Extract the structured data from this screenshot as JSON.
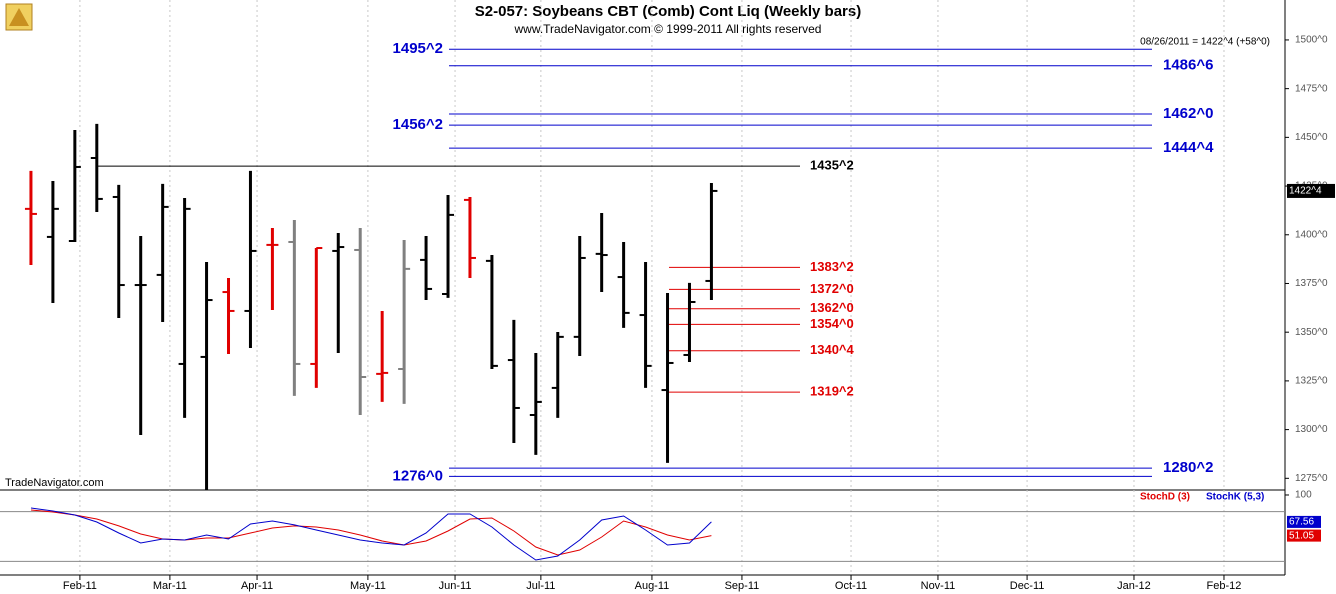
{
  "chart_data": {
    "type": "ohlc",
    "title": "S2-057:  Soybeans CBT (Comb) Cont Liq  (Weekly bars)",
    "subtitle": "www.TradeNavigator.com © 1999-2011 All rights reserved",
    "watermark": "TradeNavigator.com",
    "quote_header": "08/26/2011 = 1422^4 (+58^0)",
    "last_price": {
      "value": 1422.5,
      "label": "1422^4"
    },
    "categories": [
      null,
      null,
      null,
      null,
      null,
      null,
      null,
      null,
      null,
      null,
      null,
      null,
      null,
      null,
      null,
      null,
      null,
      null,
      null,
      null,
      null,
      null,
      null,
      null,
      null,
      null,
      null,
      null,
      null,
      null,
      null,
      null
    ],
    "open": [
      1413.3,
      1398.9,
      1396.8,
      1439.4,
      1419.4,
      1374.2,
      1379.4,
      1333.7,
      1337.3,
      1370.6,
      1360.9,
      1394.8,
      1396.3,
      1333.7,
      1391.7,
      1392.2,
      1328.6,
      1331.1,
      1387.1,
      1369.6,
      1417.9,
      1386.6,
      1335.7,
      1307.5,
      1321.4,
      1347.6,
      1390.2,
      1378.3,
      1358.8,
      1320.3,
      1338.3,
      1376.3
    ],
    "high": [
      1432.8,
      1427.6,
      1453.8,
      1456.9,
      1425.6,
      1399.4,
      1426.1,
      1418.9,
      1386.0,
      1377.8,
      1432.8,
      1403.5,
      1407.6,
      1393.2,
      1400.9,
      1403.5,
      1360.9,
      1397.3,
      1399.4,
      1420.4,
      1419.4,
      1389.6,
      1356.3,
      1339.3,
      1350.1,
      1399.4,
      1411.2,
      1396.3,
      1386.0,
      1370.1,
      1375.3,
      1426.6
    ],
    "low": [
      1384.5,
      1365.0,
      1396.3,
      1411.7,
      1357.3,
      1297.2,
      1355.2,
      1306.0,
      1269.0,
      1338.8,
      1341.9,
      1361.4,
      1317.3,
      1321.4,
      1339.3,
      1307.5,
      1314.2,
      1313.2,
      1366.5,
      1367.6,
      1377.8,
      1331.1,
      1293.1,
      1287.0,
      1306.0,
      1337.8,
      1370.6,
      1352.2,
      1321.4,
      1282.9,
      1334.7,
      1366.5
    ],
    "close": [
      1410.7,
      1413.3,
      1434.8,
      1418.4,
      1374.2,
      1374.2,
      1414.3,
      1413.3,
      1366.5,
      1360.9,
      1391.7,
      1394.8,
      1333.7,
      1393.2,
      1393.7,
      1327.0,
      1329.1,
      1382.5,
      1372.2,
      1410.2,
      1388.1,
      1332.7,
      1311.1,
      1314.2,
      1347.6,
      1388.1,
      1389.6,
      1359.9,
      1332.7,
      1334.2,
      1365.5,
      1422.5
    ],
    "bar_colors": [
      "#e00000",
      "#000000",
      "#000000",
      "#000000",
      "#000000",
      "#000000",
      "#000000",
      "#000000",
      "#000000",
      "#e00000",
      "#000000",
      "#e00000",
      "#808080",
      "#e00000",
      "#000000",
      "#808080",
      "#e00000",
      "#808080",
      "#000000",
      "#000000",
      "#e00000",
      "#000000",
      "#000000",
      "#000000",
      "#000000",
      "#000000",
      "#000000",
      "#000000",
      "#000000",
      "#000000",
      "#000000",
      "#000000"
    ],
    "xlim": [
      -1.41,
      57.13
    ],
    "xticks": [
      {
        "value": 2.23,
        "label": "Feb-11"
      },
      {
        "value": 6.33,
        "label": "Mar-11"
      },
      {
        "value": 10.3,
        "label": "Apr-11"
      },
      {
        "value": 15.35,
        "label": "May-11"
      },
      {
        "value": 19.32,
        "label": "Jun-11"
      },
      {
        "value": 23.23,
        "label": "Jul-11"
      },
      {
        "value": 28.29,
        "label": "Aug-11"
      },
      {
        "value": 32.39,
        "label": "Sep-11"
      },
      {
        "value": 37.36,
        "label": "Oct-11"
      },
      {
        "value": 41.32,
        "label": "Nov-11"
      },
      {
        "value": 45.38,
        "label": "Dec-11"
      },
      {
        "value": 50.25,
        "label": "Jan-12"
      },
      {
        "value": 54.35,
        "label": "Feb-12"
      }
    ],
    "ylim": [
      1269.0,
      1520.5
    ],
    "yticks": [
      {
        "value": 1275,
        "label": "1275^0"
      },
      {
        "value": 1300,
        "label": "1300^0"
      },
      {
        "value": 1325,
        "label": "1325^0"
      },
      {
        "value": 1350,
        "label": "1350^0"
      },
      {
        "value": 1375,
        "label": "1375^0"
      },
      {
        "value": 1400,
        "label": "1400^0"
      },
      {
        "value": 1425,
        "label": "1425^0"
      },
      {
        "value": 1450,
        "label": "1450^0"
      },
      {
        "value": 1475,
        "label": "1475^0"
      },
      {
        "value": 1500,
        "label": "1500^0"
      }
    ],
    "levels": [
      {
        "value": 1495.25,
        "label": "1495^2",
        "color": "#0000cc",
        "side": "left"
      },
      {
        "value": 1486.75,
        "label": "1486^6",
        "color": "#0000cc",
        "side": "right"
      },
      {
        "value": 1462,
        "label": "1462^0",
        "color": "#0000cc",
        "side": "right"
      },
      {
        "value": 1456.25,
        "label": "1456^2",
        "color": "#0000cc",
        "side": "left"
      },
      {
        "value": 1444.5,
        "label": "1444^4",
        "color": "#0000cc",
        "side": "right"
      },
      {
        "value": 1435.25,
        "label": "1435^2",
        "color": "#000000",
        "side": "right"
      },
      {
        "value": 1383.25,
        "label": "1383^2",
        "color": "#e00000",
        "side": "right"
      },
      {
        "value": 1372,
        "label": "1372^0",
        "color": "#e00000",
        "side": "right"
      },
      {
        "value": 1362,
        "label": "1362^0",
        "color": "#e00000",
        "side": "right"
      },
      {
        "value": 1354,
        "label": "1354^0",
        "color": "#e00000",
        "side": "right"
      },
      {
        "value": 1340.5,
        "label": "1340^4",
        "color": "#e00000",
        "side": "right"
      },
      {
        "value": 1319.25,
        "label": "1319^2",
        "color": "#e00000",
        "side": "right"
      },
      {
        "value": 1280.25,
        "label": "1280^2",
        "color": "#0000cc",
        "side": "right"
      },
      {
        "value": 1276,
        "label": "1276^0",
        "color": "#0000cc",
        "side": "left"
      }
    ],
    "stoch": {
      "ylim": [
        3.6,
        106
      ],
      "yticks": [
        100
      ],
      "guide_lines": [
        80,
        20
      ],
      "series": [
        {
          "name": "StochD (3)",
          "color": "#e00000",
          "last_label_value": 51.05,
          "values": [
            81.9,
            79.5,
            75.9,
            71.1,
            62.7,
            53,
            47,
            45.8,
            48.2,
            48.2,
            54.2,
            60.2,
            62.7,
            61.4,
            57.8,
            51.8,
            44.6,
            39.8,
            44.6,
            56.6,
            71.1,
            72.3,
            56.6,
            37.3,
            27.7,
            33.7,
            49.4,
            68.7,
            61.4,
            51.8,
            45.8,
            51.05
          ]
        },
        {
          "name": "StochK (5,3)",
          "color": "#0000cc",
          "last_label_value": 67.56,
          "values": [
            84.3,
            80.7,
            75.9,
            67.5,
            54.2,
            42.2,
            47,
            45.8,
            51.8,
            47,
            65.1,
            68.7,
            63.9,
            57.8,
            51.8,
            45.8,
            42.2,
            39.8,
            54.2,
            77.1,
            77.1,
            61.4,
            39.8,
            21.7,
            26.5,
            45.8,
            69.9,
            74.7,
            57.8,
            39.8,
            42.2,
            67.56
          ]
        }
      ]
    }
  }
}
